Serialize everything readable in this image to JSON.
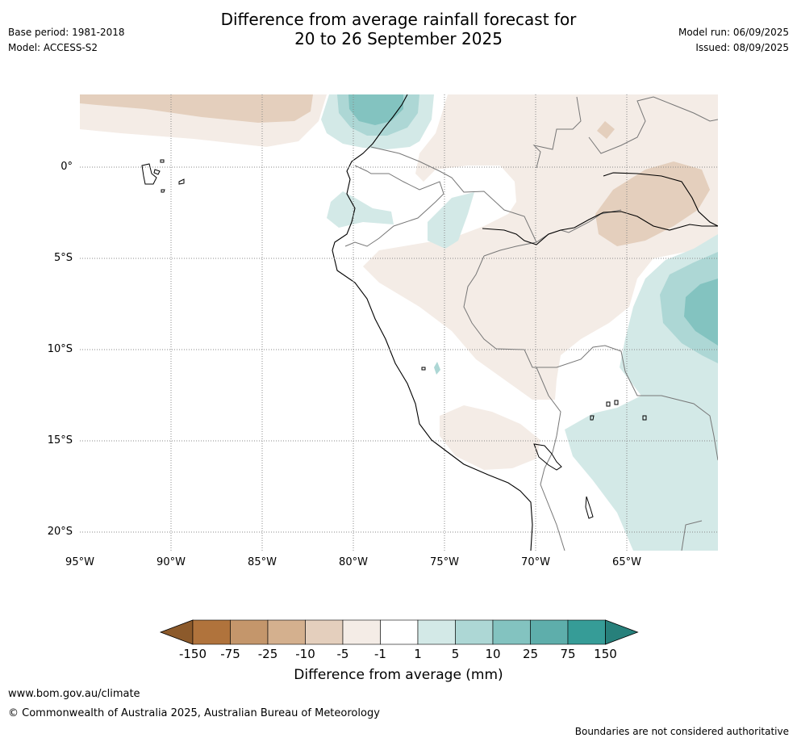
{
  "header": {
    "base_period": "Base period: 1981-2018",
    "model": "Model: ACCESS-S2",
    "title_line1": "Difference from average rainfall forecast for",
    "title_line2": "20 to 26 September 2025",
    "model_run": "Model run: 06/09/2025",
    "issued": "Issued: 08/09/2025"
  },
  "map": {
    "lat_labels": [
      "0°",
      "5°S",
      "10°S",
      "15°S",
      "20°S"
    ],
    "lon_labels": [
      "95°W",
      "90°W",
      "85°W",
      "80°W",
      "75°W",
      "70°W",
      "65°W"
    ],
    "extent": {
      "lon_min": -95,
      "lon_max": -60,
      "lat_min": -21,
      "lat_max": 4
    }
  },
  "colorbar": {
    "title": "Difference from average (mm)",
    "tick_labels": [
      "-150",
      "-75",
      "-25",
      "-10",
      "-5",
      "-1",
      "1",
      "5",
      "10",
      "25",
      "75",
      "150"
    ],
    "colors": [
      "#8c5a2b",
      "#b0733c",
      "#c4966b",
      "#d4b08e",
      "#e4cfbd",
      "#f4ece6",
      "#ffffff",
      "#d3e9e7",
      "#add7d5",
      "#83c3c0",
      "#5eaeab",
      "#369c97",
      "#27807b"
    ]
  },
  "footer": {
    "url": "www.bom.gov.au/climate",
    "copyright": "© Commonwealth of Australia 2025, Australian Bureau of Meteorology",
    "disclaimer": "Boundaries are not considered authoritative"
  }
}
